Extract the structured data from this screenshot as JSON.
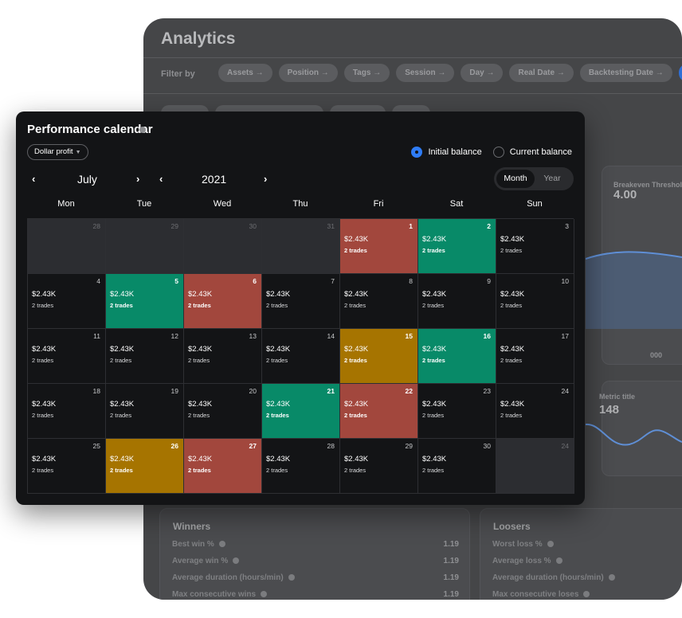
{
  "analytics": {
    "title": "Analytics",
    "filter_label": "Filter by",
    "filter_chips": [
      "Assets →",
      "Position →",
      "Tags →",
      "Session →",
      "Day →",
      "Real Date →",
      "Backtesting Date →"
    ],
    "metrics": [
      {
        "label": "Breakeven Threshold",
        "value": "4.00"
      },
      {
        "label": "Metric title",
        "value": "148"
      }
    ],
    "chart_tick": "000",
    "winners": {
      "title": "Winners",
      "rows": [
        {
          "label": "Best win %",
          "value": "1.19"
        },
        {
          "label": "Average win %",
          "value": "1.19"
        },
        {
          "label": "Average duration (hours/min)",
          "value": "1.19"
        },
        {
          "label": "Max consecutive wins",
          "value": "1.19"
        }
      ]
    },
    "loosers": {
      "title": "Loosers",
      "rows": [
        {
          "label": "Worst loss %"
        },
        {
          "label": "Average loss %"
        },
        {
          "label": "Average duration (hours/min)"
        },
        {
          "label": "Max consecutive loses"
        }
      ]
    }
  },
  "calendar": {
    "title": "Performance calendar",
    "dropdown": "Dollar profit",
    "balance_options": [
      {
        "label": "Initial balance",
        "checked": true
      },
      {
        "label": "Current balance",
        "checked": false
      }
    ],
    "month": "July",
    "year": "2021",
    "view_toggle": {
      "options": [
        "Month",
        "Year"
      ],
      "active": "Month"
    },
    "weekdays": [
      "Mon",
      "Tue",
      "Wed",
      "Thu",
      "Fri",
      "Sat",
      "Sun"
    ],
    "colors": {
      "loss": "#a2473d",
      "win": "#088a68",
      "breakeven": "#a67400",
      "empty": "#2c2d31",
      "accent": "#2f7cf6"
    },
    "days": [
      {
        "num": "28",
        "type": "prev"
      },
      {
        "num": "29",
        "type": "prev"
      },
      {
        "num": "30",
        "type": "prev"
      },
      {
        "num": "31",
        "type": "prev"
      },
      {
        "num": "1",
        "type": "loss",
        "amount": "$2.43K",
        "trades": "2 trades"
      },
      {
        "num": "2",
        "type": "win",
        "amount": "$2.43K",
        "trades": "2 trades"
      },
      {
        "num": "3",
        "type": "normal",
        "amount": "$2.43K",
        "trades": "2 trades"
      },
      {
        "num": "4",
        "type": "normal",
        "amount": "$2.43K",
        "trades": "2 trades"
      },
      {
        "num": "5",
        "type": "win",
        "amount": "$2.43K",
        "trades": "2 trades"
      },
      {
        "num": "6",
        "type": "loss",
        "amount": "$2.43K",
        "trades": "2 trades"
      },
      {
        "num": "7",
        "type": "normal",
        "amount": "$2.43K",
        "trades": "2 trades"
      },
      {
        "num": "8",
        "type": "normal",
        "amount": "$2.43K",
        "trades": "2 trades"
      },
      {
        "num": "9",
        "type": "normal",
        "amount": "$2.43K",
        "trades": "2 trades"
      },
      {
        "num": "10",
        "type": "normal",
        "amount": "$2.43K",
        "trades": "2 trades"
      },
      {
        "num": "11",
        "type": "normal",
        "amount": "$2.43K",
        "trades": "2 trades"
      },
      {
        "num": "12",
        "type": "normal",
        "amount": "$2.43K",
        "trades": "2 trades"
      },
      {
        "num": "13",
        "type": "normal",
        "amount": "$2.43K",
        "trades": "2 trades"
      },
      {
        "num": "14",
        "type": "normal",
        "amount": "$2.43K",
        "trades": "2 trades"
      },
      {
        "num": "15",
        "type": "be",
        "amount": "$2.43K",
        "trades": "2 trades"
      },
      {
        "num": "16",
        "type": "win",
        "amount": "$2.43K",
        "trades": "2 trades"
      },
      {
        "num": "17",
        "type": "normal",
        "amount": "$2.43K",
        "trades": "2 trades"
      },
      {
        "num": "18",
        "type": "normal",
        "amount": "$2.43K",
        "trades": "2 trades"
      },
      {
        "num": "19",
        "type": "normal",
        "amount": "$2.43K",
        "trades": "2 trades"
      },
      {
        "num": "20",
        "type": "normal",
        "amount": "$2.43K",
        "trades": "2 trades"
      },
      {
        "num": "21",
        "type": "win",
        "amount": "$2.43K",
        "trades": "2 trades"
      },
      {
        "num": "22",
        "type": "loss",
        "amount": "$2.43K",
        "trades": "2 trades"
      },
      {
        "num": "23",
        "type": "normal",
        "amount": "$2.43K",
        "trades": "2 trades"
      },
      {
        "num": "24",
        "type": "normal",
        "amount": "$2.43K",
        "trades": "2 trades"
      },
      {
        "num": "25",
        "type": "normal",
        "amount": "$2.43K",
        "trades": "2 trades"
      },
      {
        "num": "26",
        "type": "be",
        "amount": "$2.43K",
        "trades": "2 trades"
      },
      {
        "num": "27",
        "type": "loss",
        "amount": "$2.43K",
        "trades": "2 trades"
      },
      {
        "num": "28",
        "type": "normal",
        "amount": "$2.43K",
        "trades": "2 trades"
      },
      {
        "num": "29",
        "type": "normal",
        "amount": "$2.43K",
        "trades": "2 trades"
      },
      {
        "num": "30",
        "type": "normal",
        "amount": "$2.43K",
        "trades": "2 trades"
      },
      {
        "num": "24",
        "type": "prev"
      }
    ]
  }
}
